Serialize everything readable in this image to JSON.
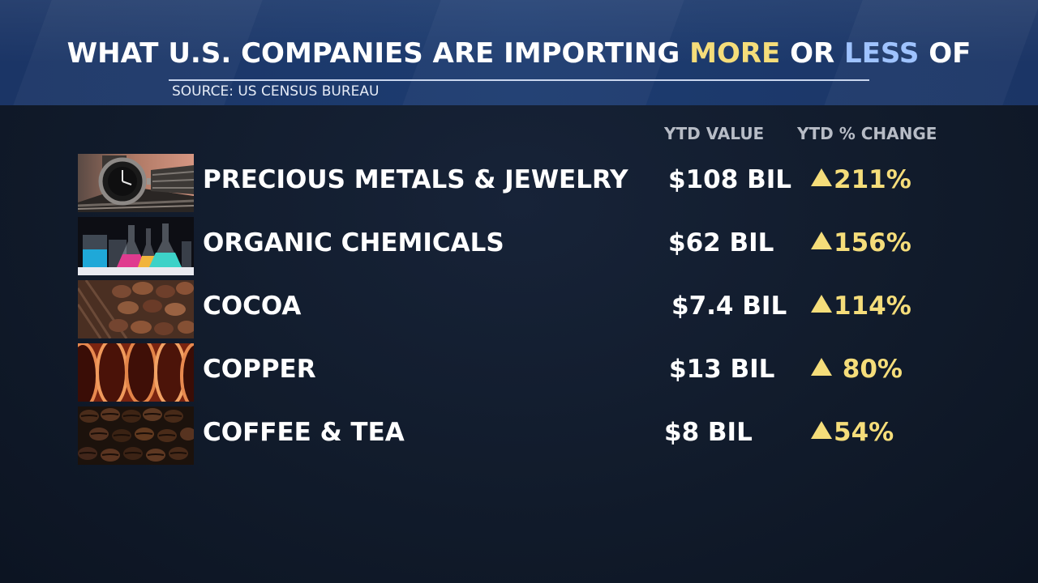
{
  "header": {
    "title_part1": "WHAT U.S. COMPANIES ARE IMPORTING ",
    "title_more": "MORE",
    "title_mid": " OR ",
    "title_less": "LESS",
    "title_end": " OF",
    "source": "SOURCE: US CENSUS BUREAU"
  },
  "columns": {
    "value": "YTD VALUE",
    "change": "YTD % CHANGE"
  },
  "rows": [
    {
      "name": "PRECIOUS METALS & JEWELRY",
      "value": "$108 BIL",
      "change": "211%",
      "direction": "up",
      "image": "watch-photo"
    },
    {
      "name": "ORGANIC CHEMICALS",
      "value": "$62 BIL",
      "change": "156%",
      "direction": "up",
      "image": "lab-flasks-photo"
    },
    {
      "name": "COCOA",
      "value": "$7.4 BIL",
      "change": "114%",
      "direction": "up",
      "image": "cocoa-beans-photo"
    },
    {
      "name": "COPPER",
      "value": "$13 BIL",
      "change": "80%",
      "direction": "up",
      "image": "copper-pipes-photo"
    },
    {
      "name": "COFFEE & TEA",
      "value": "$8 BIL",
      "change": "54%",
      "direction": "up",
      "image": "coffee-beans-photo"
    }
  ],
  "colors": {
    "header_bg": "#1d3c70",
    "more": "#f5dd7a",
    "less": "#9fc3ff",
    "change": "#f5dd7a"
  }
}
